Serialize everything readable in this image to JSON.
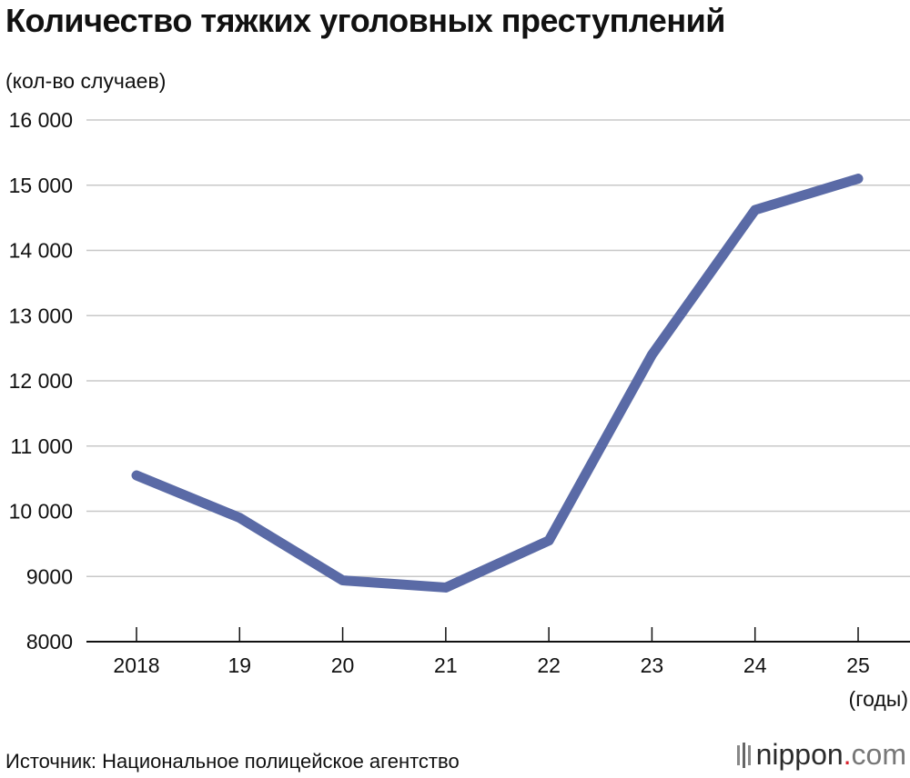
{
  "chart_data": {
    "type": "line",
    "title": "Количество тяжких уголовных преступлений",
    "ylabel": "(кол-во случаев)",
    "xlabel_unit": "(годы)",
    "categories": [
      "2018",
      "19",
      "20",
      "21",
      "22",
      "23",
      "24",
      "25"
    ],
    "series": [
      {
        "values": [
          10550,
          9900,
          8940,
          8830,
          9550,
          12400,
          14620,
          15100
        ]
      }
    ],
    "ylim": [
      8000,
      16000
    ],
    "yticks": [
      8000,
      9000,
      10000,
      11000,
      12000,
      13000,
      14000,
      15000,
      16000
    ],
    "ytick_labels": [
      "8000",
      "9000",
      "10 000",
      "11 000",
      "12 000",
      "13 000",
      "14 000",
      "15 000",
      "16 000"
    ],
    "grid": true,
    "line_color": "#5a6aa6",
    "grid_color": "#c8c8c8"
  },
  "source": "Источник: Национальное полицейское агентство",
  "logo": {
    "name": "nippon",
    "dot": ".",
    "tld": "com"
  }
}
